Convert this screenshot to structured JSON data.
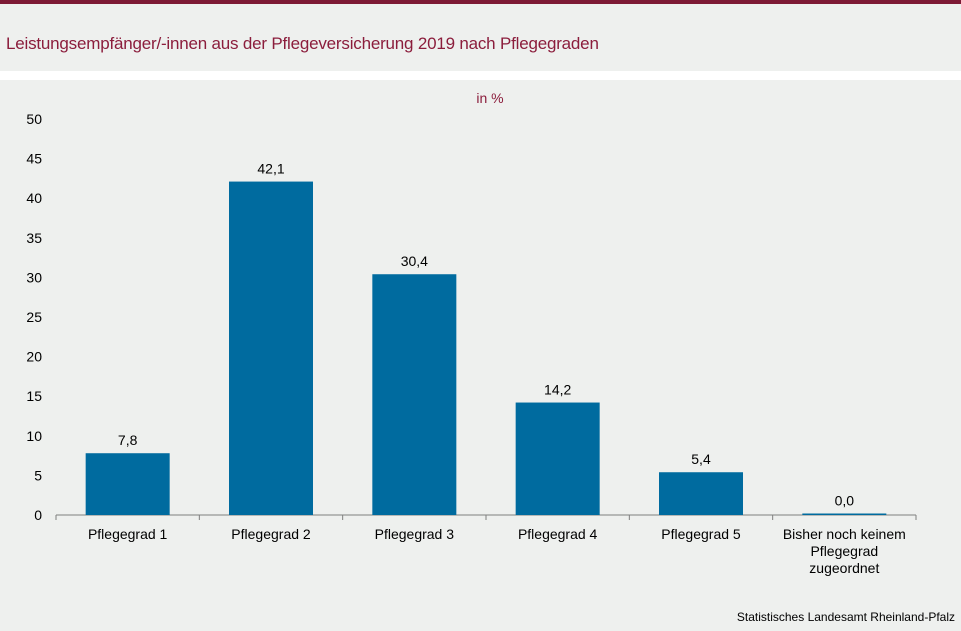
{
  "title": "Leistungsempfänger/-innen aus der Pflegeversicherung 2019 nach Pflegegraden",
  "source": "Statistisches Landesamt Rheinland-Pfalz",
  "colors": {
    "bar": "#006b9f",
    "accent": "#8b1d3c",
    "background": "#eef0ee"
  },
  "chart_data": {
    "type": "bar",
    "unit_label": "in %",
    "categories": [
      [
        "Pflegegrad 1"
      ],
      [
        "Pflegegrad 2"
      ],
      [
        "Pflegegrad 3"
      ],
      [
        "Pflegegrad 4"
      ],
      [
        "Pflegegrad 5"
      ],
      [
        "Bisher noch keinem",
        "Pflegegrad",
        "zugeordnet"
      ]
    ],
    "values": [
      7.8,
      42.1,
      30.4,
      14.2,
      5.4,
      0.0
    ],
    "value_labels": [
      "7,8",
      "42,1",
      "30,4",
      "14,2",
      "5,4",
      "0,0"
    ],
    "ylim": [
      0,
      50
    ],
    "yticks": [
      0,
      5,
      10,
      15,
      20,
      25,
      30,
      35,
      40,
      45,
      50
    ],
    "grid": false,
    "legend": "none"
  }
}
